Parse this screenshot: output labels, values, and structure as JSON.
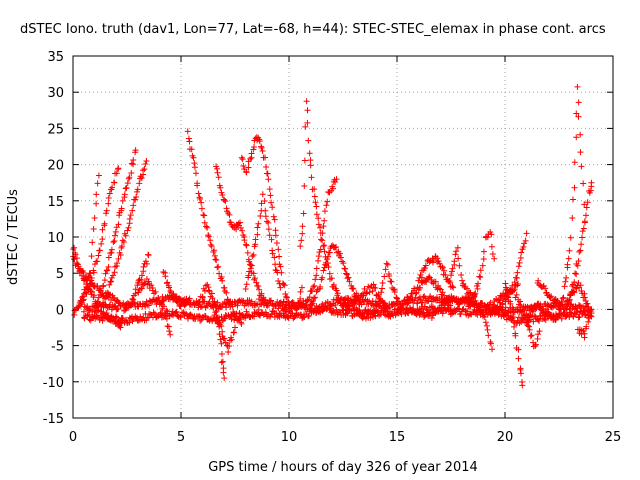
{
  "chart_data": {
    "type": "scatter",
    "title": "dSTEC Iono. truth (dav1, Lon=77, Lat=-68, h=44): STEC-STEC_elemax in phase cont. arcs",
    "xlabel": "GPS time / hours of day 326 of year 2014",
    "ylabel": "dSTEC  / TECUs",
    "xlim": [
      0,
      25
    ],
    "ylim": [
      -15,
      35
    ],
    "xticks": [
      0,
      5,
      10,
      15,
      20,
      25
    ],
    "yticks": [
      -15,
      -10,
      -5,
      0,
      5,
      10,
      15,
      20,
      25,
      30,
      35
    ],
    "grid": true,
    "marker": "+",
    "series": [
      {
        "name": "dSTEC",
        "color": "#ff0000",
        "anchors": [
          [
            [
              0.0,
              8.5
            ],
            [
              0.3,
              5.5
            ],
            [
              0.7,
              3.0
            ],
            [
              1.2,
              0.5
            ],
            [
              1.6,
              -1.0
            ],
            [
              2.2,
              -2.5
            ]
          ],
          [
            [
              0.0,
              7.0
            ],
            [
              0.4,
              5.0
            ],
            [
              0.9,
              3.5
            ],
            [
              1.5,
              2.0
            ],
            [
              2.1,
              1.0
            ]
          ],
          [
            [
              0.0,
              -0.5
            ],
            [
              0.4,
              1.0
            ],
            [
              0.8,
              5.0
            ],
            [
              1.0,
              13.0
            ],
            [
              1.2,
              18.5
            ]
          ],
          [
            [
              0.3,
              0.5
            ],
            [
              0.8,
              3.5
            ],
            [
              1.3,
              9.0
            ],
            [
              1.7,
              16.0
            ],
            [
              2.1,
              19.5
            ]
          ],
          [
            [
              1.0,
              0.0
            ],
            [
              1.5,
              4.5
            ],
            [
              2.0,
              11.0
            ],
            [
              2.5,
              17.0
            ],
            [
              2.9,
              22.0
            ]
          ],
          [
            [
              1.4,
              0.5
            ],
            [
              2.0,
              6.0
            ],
            [
              2.6,
              12.0
            ],
            [
              3.0,
              17.0
            ],
            [
              3.4,
              20.5
            ]
          ],
          [
            [
              2.1,
              -2.0
            ],
            [
              2.6,
              0.5
            ],
            [
              3.1,
              4.0
            ],
            [
              3.5,
              7.5
            ]
          ],
          [
            [
              3.0,
              2.5
            ],
            [
              3.4,
              4.0
            ],
            [
              3.8,
              2.0
            ],
            [
              4.2,
              0.0
            ],
            [
              4.5,
              -3.5
            ]
          ],
          [
            [
              4.2,
              5.0
            ],
            [
              4.6,
              2.0
            ],
            [
              5.0,
              0.5
            ],
            [
              5.4,
              1.5
            ]
          ],
          [
            [
              5.3,
              24.5
            ],
            [
              5.6,
              20.0
            ],
            [
              5.9,
              15.0
            ],
            [
              6.3,
              10.0
            ],
            [
              6.7,
              6.0
            ],
            [
              7.1,
              2.0
            ],
            [
              7.5,
              -0.5
            ],
            [
              7.8,
              -2.0
            ]
          ],
          [
            [
              5.8,
              0.5
            ],
            [
              6.2,
              3.5
            ],
            [
              6.6,
              0.5
            ],
            [
              6.8,
              -3.0
            ],
            [
              6.9,
              -7.0
            ],
            [
              7.0,
              -9.5
            ]
          ],
          [
            [
              6.5,
              0.0
            ],
            [
              6.9,
              -3.0
            ],
            [
              7.2,
              -5.5
            ],
            [
              7.5,
              -2.5
            ]
          ],
          [
            [
              6.6,
              19.5
            ],
            [
              7.0,
              15.0
            ],
            [
              7.4,
              11.0
            ],
            [
              7.7,
              12.0
            ],
            [
              8.0,
              9.0
            ],
            [
              8.3,
              5.0
            ],
            [
              8.7,
              2.0
            ],
            [
              9.0,
              0.5
            ]
          ],
          [
            [
              7.8,
              21.0
            ],
            [
              8.0,
              19.0
            ],
            [
              8.2,
              20.5
            ],
            [
              8.5,
              24.0
            ],
            [
              8.8,
              22.0
            ],
            [
              9.1,
              17.0
            ],
            [
              9.4,
              10.0
            ],
            [
              9.7,
              4.0
            ],
            [
              10.0,
              0.5
            ]
          ],
          [
            [
              8.0,
              3.0
            ],
            [
              8.3,
              7.0
            ],
            [
              8.6,
              12.0
            ],
            [
              8.8,
              15.5
            ],
            [
              9.0,
              12.5
            ],
            [
              9.3,
              7.0
            ],
            [
              9.6,
              3.0
            ]
          ],
          [
            [
              9.5,
              0.5
            ],
            [
              10.0,
              0.0
            ],
            [
              10.4,
              0.5
            ],
            [
              10.6,
              3.0
            ]
          ],
          [
            [
              10.5,
              8.5
            ],
            [
              10.7,
              13.0
            ],
            [
              10.8,
              29.0
            ],
            [
              10.95,
              22.0
            ],
            [
              11.1,
              17.0
            ],
            [
              11.4,
              12.0
            ],
            [
              11.7,
              7.0
            ],
            [
              12.0,
              3.5
            ],
            [
              12.4,
              1.0
            ],
            [
              12.8,
              0.0
            ]
          ],
          [
            [
              10.4,
              0.5
            ],
            [
              10.8,
              1.0
            ],
            [
              11.2,
              4.0
            ],
            [
              11.5,
              9.5
            ],
            [
              11.8,
              16.0
            ],
            [
              12.2,
              18.0
            ]
          ],
          [
            [
              11.0,
              0.5
            ],
            [
              11.4,
              3.0
            ],
            [
              11.8,
              7.5
            ],
            [
              12.1,
              9.0
            ],
            [
              12.5,
              6.5
            ],
            [
              12.9,
              3.0
            ],
            [
              13.3,
              1.0
            ]
          ],
          [
            [
              12.5,
              0.5
            ],
            [
              13.0,
              1.0
            ],
            [
              13.5,
              2.5
            ],
            [
              13.9,
              3.0
            ],
            [
              14.3,
              1.0
            ],
            [
              14.7,
              -1.0
            ]
          ],
          [
            [
              13.0,
              0.0
            ],
            [
              13.5,
              -1.0
            ],
            [
              14.0,
              -0.5
            ],
            [
              14.3,
              2.5
            ],
            [
              14.5,
              6.5
            ],
            [
              14.7,
              4.0
            ],
            [
              15.0,
              1.5
            ]
          ],
          [
            [
              15.0,
              -0.5
            ],
            [
              15.5,
              1.5
            ],
            [
              16.0,
              3.0
            ],
            [
              16.5,
              4.5
            ],
            [
              17.0,
              2.5
            ],
            [
              17.5,
              0.0
            ]
          ],
          [
            [
              16.0,
              4.0
            ],
            [
              16.4,
              6.5
            ],
            [
              16.8,
              7.0
            ],
            [
              17.2,
              5.0
            ],
            [
              17.6,
              3.0
            ]
          ],
          [
            [
              15.5,
              0.0
            ],
            [
              16.0,
              -0.5
            ],
            [
              16.5,
              -1.0
            ],
            [
              17.0,
              0.0
            ],
            [
              17.5,
              1.5
            ],
            [
              17.9,
              1.0
            ]
          ],
          [
            [
              17.5,
              5.0
            ],
            [
              17.8,
              8.5
            ],
            [
              18.0,
              4.0
            ],
            [
              18.3,
              2.0
            ],
            [
              18.6,
              2.0
            ]
          ],
          [
            [
              17.8,
              0.5
            ],
            [
              18.2,
              1.5
            ],
            [
              18.6,
              1.0
            ],
            [
              19.0,
              -1.0
            ],
            [
              19.2,
              -3.0
            ],
            [
              19.4,
              -5.5
            ]
          ],
          [
            [
              18.3,
              0.0
            ],
            [
              18.6,
              2.0
            ],
            [
              18.9,
              5.0
            ],
            [
              19.1,
              9.5
            ],
            [
              19.3,
              11.0
            ],
            [
              19.5,
              7.0
            ]
          ],
          [
            [
              18.8,
              -0.5
            ],
            [
              19.3,
              0.5
            ],
            [
              19.8,
              1.5
            ],
            [
              20.2,
              2.5
            ],
            [
              20.6,
              3.5
            ]
          ],
          [
            [
              19.6,
              0.0
            ],
            [
              20.0,
              1.5
            ],
            [
              20.4,
              3.0
            ],
            [
              20.8,
              8.0
            ],
            [
              21.0,
              10.5
            ]
          ],
          [
            [
              20.0,
              3.5
            ],
            [
              20.3,
              0.0
            ],
            [
              20.5,
              -4.0
            ],
            [
              20.7,
              -8.0
            ],
            [
              20.8,
              -10.5
            ]
          ],
          [
            [
              20.5,
              2.0
            ],
            [
              20.9,
              -1.0
            ],
            [
              21.2,
              -3.5
            ],
            [
              21.4,
              -5.5
            ],
            [
              21.6,
              -3.0
            ]
          ],
          [
            [
              21.0,
              -1.0
            ],
            [
              21.5,
              0.5
            ],
            [
              21.9,
              -0.5
            ],
            [
              22.3,
              -1.5
            ],
            [
              22.6,
              0.0
            ]
          ],
          [
            [
              21.5,
              4.0
            ],
            [
              21.8,
              3.0
            ],
            [
              22.2,
              1.5
            ],
            [
              22.5,
              0.5
            ]
          ],
          [
            [
              22.4,
              -1.0
            ],
            [
              22.7,
              2.0
            ],
            [
              23.0,
              8.0
            ],
            [
              23.2,
              17.0
            ],
            [
              23.35,
              30.5
            ],
            [
              23.5,
              22.0
            ],
            [
              23.7,
              12.0
            ]
          ],
          [
            [
              22.8,
              0.5
            ],
            [
              23.1,
              2.0
            ],
            [
              23.4,
              3.5
            ],
            [
              23.7,
              1.5
            ],
            [
              24.0,
              -1.0
            ]
          ],
          [
            [
              22.8,
              0.0
            ],
            [
              23.1,
              3.0
            ],
            [
              23.4,
              7.0
            ],
            [
              23.7,
              12.0
            ],
            [
              23.9,
              16.0
            ],
            [
              24.0,
              17.5
            ]
          ],
          [
            [
              23.4,
              -3.0
            ],
            [
              23.7,
              -3.5
            ],
            [
              24.0,
              0.0
            ]
          ],
          [
            [
              0.5,
              0.0
            ],
            [
              2.5,
              0.5
            ],
            [
              4.5,
              1.5
            ],
            [
              6.5,
              0.5
            ],
            [
              8.5,
              1.0
            ],
            [
              10.5,
              0.5
            ],
            [
              12.5,
              -0.5
            ],
            [
              14.5,
              -0.5
            ],
            [
              16.5,
              0.0
            ],
            [
              18.5,
              -0.5
            ],
            [
              20.5,
              0.0
            ],
            [
              22.5,
              0.5
            ],
            [
              24.0,
              0.0
            ]
          ],
          [
            [
              0.5,
              -1.0
            ],
            [
              2.5,
              -1.5
            ],
            [
              4.5,
              -0.5
            ],
            [
              6.5,
              -1.5
            ],
            [
              8.5,
              -0.5
            ],
            [
              10.5,
              -1.0
            ],
            [
              12.5,
              1.5
            ],
            [
              14.5,
              0.5
            ],
            [
              16.5,
              1.5
            ],
            [
              18.5,
              1.0
            ],
            [
              20.5,
              -1.5
            ],
            [
              22.5,
              -1.0
            ],
            [
              24.0,
              -0.5
            ]
          ]
        ]
      }
    ]
  }
}
